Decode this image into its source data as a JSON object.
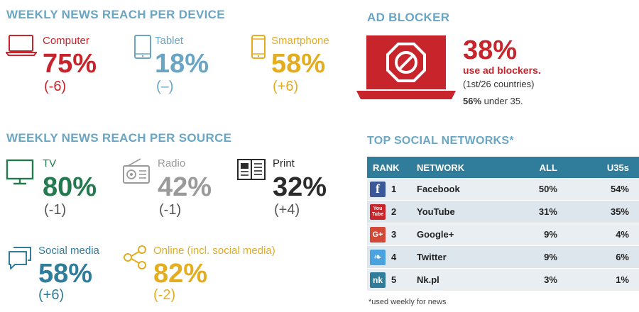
{
  "device": {
    "title": "WEEKLY NEWS REACH PER DEVICE",
    "items": [
      {
        "label": "Computer",
        "value": "75%",
        "change": "(-6)",
        "color": "#c8242b",
        "icon": "laptop-icon"
      },
      {
        "label": "Tablet",
        "value": "18%",
        "change": "(–)",
        "color": "#6aa6c4",
        "icon": "tablet-icon"
      },
      {
        "label": "Smartphone",
        "value": "58%",
        "change": "(+6)",
        "color": "#e3ad1f",
        "icon": "smartphone-icon"
      }
    ]
  },
  "ad_blocker": {
    "title": "AD BLOCKER",
    "percent": "38%",
    "use_text": "use ad blockers.",
    "rank_text": "(1st/26 countries)",
    "under_value": "56%",
    "under_text": " under 35."
  },
  "source": {
    "title": "WEEKLY NEWS REACH PER SOURCE",
    "items": [
      {
        "label": "TV",
        "value": "80%",
        "change": "(-1)",
        "color": "#227a4e",
        "icon": "tv-icon"
      },
      {
        "label": "Radio",
        "value": "42%",
        "change": "(-1)",
        "color": "#9a9a9a",
        "icon": "radio-icon"
      },
      {
        "label": "Print",
        "value": "32%",
        "change": "(+4)",
        "color": "#2b2b2b",
        "icon": "newspaper-icon"
      },
      {
        "label": "Social media",
        "value": "58%",
        "change": "(+6)",
        "color": "#2f7d9b",
        "icon": "speech-bubbles-icon"
      },
      {
        "label": "Online (incl. social media)",
        "value": "82%",
        "change": "(-2)",
        "color": "#e3ad1f",
        "icon": "share-icon"
      }
    ]
  },
  "social": {
    "title": "TOP SOCIAL NETWORKS*",
    "headers": [
      "RANK",
      "NETWORK",
      "ALL",
      "U35s"
    ],
    "rows": [
      {
        "rank": "1",
        "network": "Facebook",
        "all": "50%",
        "u35": "54%",
        "icon": "facebook-icon",
        "logo_text": "f",
        "logo_color": "#3b5998"
      },
      {
        "rank": "2",
        "network": "YouTube",
        "all": "31%",
        "u35": "35%",
        "icon": "youtube-icon",
        "logo_text": "You Tube",
        "logo_color": "#c8242b"
      },
      {
        "rank": "3",
        "network": "Google+",
        "all": "9%",
        "u35": "4%",
        "icon": "google-plus-icon",
        "logo_text": "G+",
        "logo_color": "#d34836"
      },
      {
        "rank": "4",
        "network": "Twitter",
        "all": "9%",
        "u35": "6%",
        "icon": "twitter-icon",
        "logo_text": "❧",
        "logo_color": "#4aa3df"
      },
      {
        "rank": "5",
        "network": "Nk.pl",
        "all": "3%",
        "u35": "1%",
        "icon": "nk-icon",
        "logo_text": "nk",
        "logo_color": "#2f7d9b"
      }
    ],
    "footnote": "*used weekly for news"
  }
}
